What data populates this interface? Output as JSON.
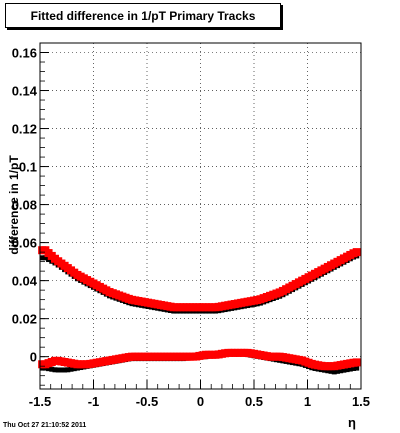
{
  "title": "Fitted difference in 1/pT  Primary Tracks",
  "timestamp": "Thu Oct 27 21:10:52 2011",
  "colors": {
    "series_red": "#ff0000",
    "series_black": "#000000",
    "grid": "#000000"
  },
  "chart_data": {
    "type": "scatter",
    "title": "Fitted difference in 1/pT  Primary Tracks",
    "xlabel": "η",
    "ylabel": "difference in 1/pT",
    "xlim": [
      -1.5,
      1.5
    ],
    "ylim": [
      -0.017,
      0.165
    ],
    "xticks": [
      "-1.5",
      "-1",
      "-0.5",
      "0",
      "0.5",
      "1",
      "1.5"
    ],
    "xtick_values": [
      -1.5,
      -1,
      -0.5,
      0,
      0.5,
      1,
      1.5
    ],
    "yticks": [
      "0",
      "0.02",
      "0.04",
      "0.06",
      "0.08",
      "0.1",
      "0.12",
      "0.14",
      "0.16"
    ],
    "ytick_values": [
      0,
      0.02,
      0.04,
      0.06,
      0.08,
      0.1,
      0.12,
      0.14,
      0.16
    ],
    "grid": true,
    "series": [
      {
        "color": "#000000",
        "marker": "square-small",
        "x": [
          -1.45,
          -1.35,
          -1.25,
          -1.15,
          -1.05,
          -0.95,
          -0.85,
          -0.75,
          -0.65,
          -0.55,
          -0.45,
          -0.35,
          -0.25,
          -0.15,
          -0.05,
          0.05,
          0.15,
          0.25,
          0.35,
          0.45,
          0.55,
          0.65,
          0.75,
          0.85,
          0.95,
          1.05,
          1.15,
          1.25,
          1.35,
          1.45
        ],
        "y": [
          0.052,
          0.049,
          0.045,
          0.041,
          0.038,
          0.035,
          0.032,
          0.03,
          0.028,
          0.027,
          0.026,
          0.025,
          0.024,
          0.024,
          0.024,
          0.024,
          0.024,
          0.025,
          0.026,
          0.027,
          0.028,
          0.03,
          0.032,
          0.035,
          0.038,
          0.041,
          0.044,
          0.047,
          0.05,
          0.053
        ]
      },
      {
        "color": "#ff0000",
        "marker": "square-large",
        "x": [
          -1.45,
          -1.35,
          -1.25,
          -1.15,
          -1.05,
          -0.95,
          -0.85,
          -0.75,
          -0.65,
          -0.55,
          -0.45,
          -0.35,
          -0.25,
          -0.15,
          -0.05,
          0.05,
          0.15,
          0.25,
          0.35,
          0.45,
          0.55,
          0.65,
          0.75,
          0.85,
          0.95,
          1.05,
          1.15,
          1.25,
          1.35,
          1.45
        ],
        "y": [
          0.056,
          0.051,
          0.047,
          0.043,
          0.04,
          0.037,
          0.034,
          0.032,
          0.03,
          0.029,
          0.028,
          0.027,
          0.026,
          0.026,
          0.026,
          0.026,
          0.026,
          0.027,
          0.028,
          0.029,
          0.03,
          0.032,
          0.034,
          0.037,
          0.04,
          0.043,
          0.046,
          0.049,
          0.052,
          0.055
        ]
      },
      {
        "color": "#000000",
        "marker": "square-small",
        "x": [
          -1.45,
          -1.35,
          -1.25,
          -1.15,
          -1.05,
          -0.95,
          -0.85,
          -0.75,
          -0.65,
          -0.55,
          -0.45,
          -0.35,
          -0.25,
          -0.15,
          -0.05,
          0.05,
          0.15,
          0.25,
          0.35,
          0.45,
          0.55,
          0.65,
          0.75,
          0.85,
          0.95,
          1.05,
          1.15,
          1.25,
          1.35,
          1.45
        ],
        "y": [
          -0.006,
          -0.007,
          -0.007,
          -0.006,
          -0.005,
          -0.004,
          -0.003,
          -0.002,
          -0.001,
          -0.001,
          -0.001,
          -0.001,
          -0.001,
          -0.001,
          0.0,
          0.0,
          0.001,
          0.002,
          0.002,
          0.001,
          0.0,
          -0.001,
          -0.002,
          -0.003,
          -0.004,
          -0.006,
          -0.007,
          -0.008,
          -0.007,
          -0.006
        ]
      },
      {
        "color": "#ff0000",
        "marker": "square-large",
        "x": [
          -1.45,
          -1.35,
          -1.25,
          -1.15,
          -1.05,
          -0.95,
          -0.85,
          -0.75,
          -0.65,
          -0.55,
          -0.45,
          -0.35,
          -0.25,
          -0.15,
          -0.05,
          0.05,
          0.15,
          0.25,
          0.35,
          0.45,
          0.55,
          0.65,
          0.75,
          0.85,
          0.95,
          1.05,
          1.15,
          1.25,
          1.35,
          1.45
        ],
        "y": [
          -0.004,
          -0.002,
          -0.003,
          -0.004,
          -0.004,
          -0.003,
          -0.002,
          -0.001,
          0.0,
          0.0,
          0.0,
          0.0,
          0.0,
          0.0,
          0.0,
          0.001,
          0.001,
          0.002,
          0.002,
          0.002,
          0.001,
          0.0,
          0.0,
          -0.001,
          -0.002,
          -0.004,
          -0.005,
          -0.005,
          -0.004,
          -0.003
        ]
      }
    ]
  }
}
